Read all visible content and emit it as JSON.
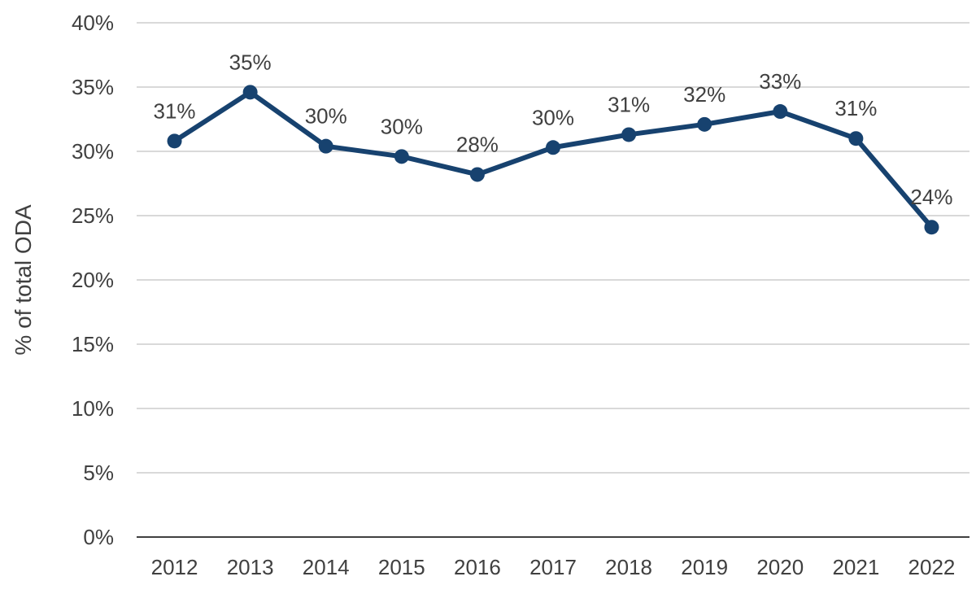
{
  "chart_data": {
    "type": "line",
    "title": "",
    "xlabel": "",
    "ylabel": "% of total ODA",
    "categories": [
      "2012",
      "2013",
      "2014",
      "2015",
      "2016",
      "2017",
      "2018",
      "2019",
      "2020",
      "2021",
      "2022"
    ],
    "series": [
      {
        "values": [
          30.8,
          34.6,
          30.4,
          29.6,
          28.2,
          30.3,
          31.3,
          32.1,
          33.1,
          31.0,
          24.1
        ],
        "data_labels": [
          "31%",
          "35%",
          "30%",
          "30%",
          "28%",
          "30%",
          "31%",
          "32%",
          "33%",
          "31%",
          "24%"
        ],
        "color": "#17426f"
      }
    ],
    "ylim": [
      0,
      40
    ],
    "yticks": [
      0,
      5,
      10,
      15,
      20,
      25,
      30,
      35,
      40
    ],
    "ytick_labels": [
      "0%",
      "5%",
      "10%",
      "15%",
      "20%",
      "25%",
      "30%",
      "35%",
      "40%"
    ],
    "grid": true,
    "gridline_color": "#d9d9d9",
    "axis_color": "#404040",
    "legend": "none"
  }
}
